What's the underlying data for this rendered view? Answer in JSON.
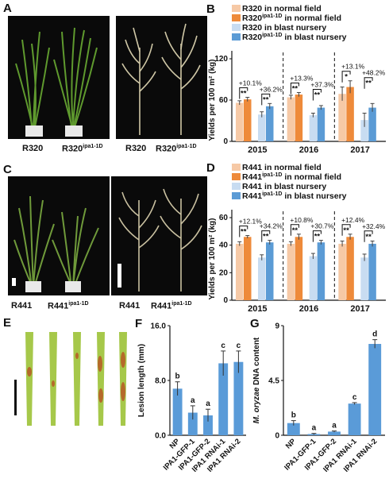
{
  "panels": {
    "A": {
      "letter": "A",
      "labels": [
        "R320",
        "R320",
        "R320",
        "R320"
      ],
      "sup": "ipa1-1D"
    },
    "C": {
      "letter": "C",
      "labels": [
        "R441",
        "R441",
        "R441",
        "R441"
      ],
      "sup": "ipa1-1D"
    },
    "E": {
      "letter": "E"
    }
  },
  "colors": {
    "normal_wt": "#f6c9a6",
    "normal_mut": "#ee8a3a",
    "blast_wt": "#c8dcf1",
    "blast_mut": "#5b9bd5",
    "bar_blue": "#5a9bd8"
  },
  "chart_data": [
    {
      "type": "bar",
      "panel": "B",
      "ylabel": "Yields per 100 m² (kg)",
      "ylim": [
        0,
        120
      ],
      "yticks": [
        0,
        60,
        120
      ],
      "categories": [
        "2015",
        "2016",
        "2017"
      ],
      "legend": [
        {
          "base": "R320",
          "sup": "",
          "rest": " in normal field"
        },
        {
          "base": "R320",
          "sup": "ipa1-1D",
          "rest": " in normal field"
        },
        {
          "base": "R320",
          "sup": "",
          "rest": " in blast nursery"
        },
        {
          "base": "R320",
          "sup": "ipa1-1D",
          "rest": " in blast nursery"
        }
      ],
      "series": [
        {
          "values": [
            56,
            64,
            69
          ],
          "errors": [
            3,
            3,
            10
          ]
        },
        {
          "values": [
            61,
            68,
            79
          ],
          "errors": [
            3,
            3,
            9
          ]
        },
        {
          "values": [
            39,
            38,
            31
          ],
          "errors": [
            4,
            3,
            10
          ]
        },
        {
          "values": [
            51,
            49,
            49
          ],
          "errors": [
            4,
            3,
            6
          ]
        }
      ],
      "pct_normal": [
        "+10.1%",
        "+13.3%",
        "+13.1%"
      ],
      "pct_blast": [
        "+36.2%",
        "+37.3%",
        "+48.2%"
      ],
      "sig_normal": [
        "**",
        "**",
        "*"
      ],
      "sig_blast": [
        "**",
        "**",
        "**"
      ]
    },
    {
      "type": "bar",
      "panel": "D",
      "ylabel": "Yields per 100 m² (kg)",
      "ylim": [
        0,
        60
      ],
      "yticks": [
        0,
        20,
        40,
        60
      ],
      "categories": [
        "2015",
        "2016",
        "2017"
      ],
      "legend": [
        {
          "base": "R441",
          "sup": "",
          "rest": " in normal field"
        },
        {
          "base": "R441",
          "sup": "ipa1-1D",
          "rest": " in normal field"
        },
        {
          "base": "R441",
          "sup": "",
          "rest": " in blast nursery"
        },
        {
          "base": "R441",
          "sup": "ipa1-1D",
          "rest": " in blast nursery"
        }
      ],
      "series": [
        {
          "values": [
            41,
            41,
            41
          ],
          "errors": [
            1.5,
            1.5,
            2
          ]
        },
        {
          "values": [
            46,
            46,
            46
          ],
          "errors": [
            1,
            2,
            2
          ]
        },
        {
          "values": [
            31,
            32,
            31
          ],
          "errors": [
            2,
            2,
            2.5
          ]
        },
        {
          "values": [
            42,
            42,
            41
          ],
          "errors": [
            1.5,
            1.5,
            2
          ]
        }
      ],
      "pct_normal": [
        "+12.1%",
        "+10.8%",
        "+12.4%"
      ],
      "pct_blast": [
        "+34.2%",
        "+30.7%",
        "+32.4%"
      ],
      "sig_normal": [
        "**",
        "**",
        "**"
      ],
      "sig_blast": [
        "**",
        "**",
        "**"
      ]
    },
    {
      "type": "bar",
      "panel": "F",
      "ylabel": "Lesion length (mm)",
      "ylim": [
        0,
        16
      ],
      "yticks": [
        "0.0",
        "8.0",
        "16.0"
      ],
      "categories": [
        "NP",
        "IPA1-GFP-1",
        "IPA1-GFP-2",
        "IPA1 RNAi-1",
        "IPA1 RNAi-2"
      ],
      "values": [
        6.8,
        3.3,
        2.9,
        10.5,
        10.7
      ],
      "errors": [
        1.0,
        1.0,
        0.9,
        1.8,
        1.6
      ],
      "letters": [
        "b",
        "a",
        "a",
        "c",
        "c"
      ]
    },
    {
      "type": "bar",
      "panel": "G",
      "ylabel": "M. oryzae DNA content",
      "ylabel_italic": "M. oryzae",
      "ylabel_rest": " DNA content",
      "ylim": [
        0,
        9
      ],
      "yticks": [
        "0",
        "4.5",
        "9"
      ],
      "categories": [
        "NP",
        "IPA1-GFP-1",
        "IPA1-GFP-2",
        "IPA1 RNAi-1",
        "IPA1 RNAi-2"
      ],
      "values": [
        1.0,
        0.1,
        0.3,
        2.6,
        7.5
      ],
      "errors": [
        0.2,
        0.05,
        0.05,
        0.08,
        0.35
      ],
      "letters": [
        "b",
        "a",
        "a",
        "c",
        "d"
      ]
    }
  ]
}
